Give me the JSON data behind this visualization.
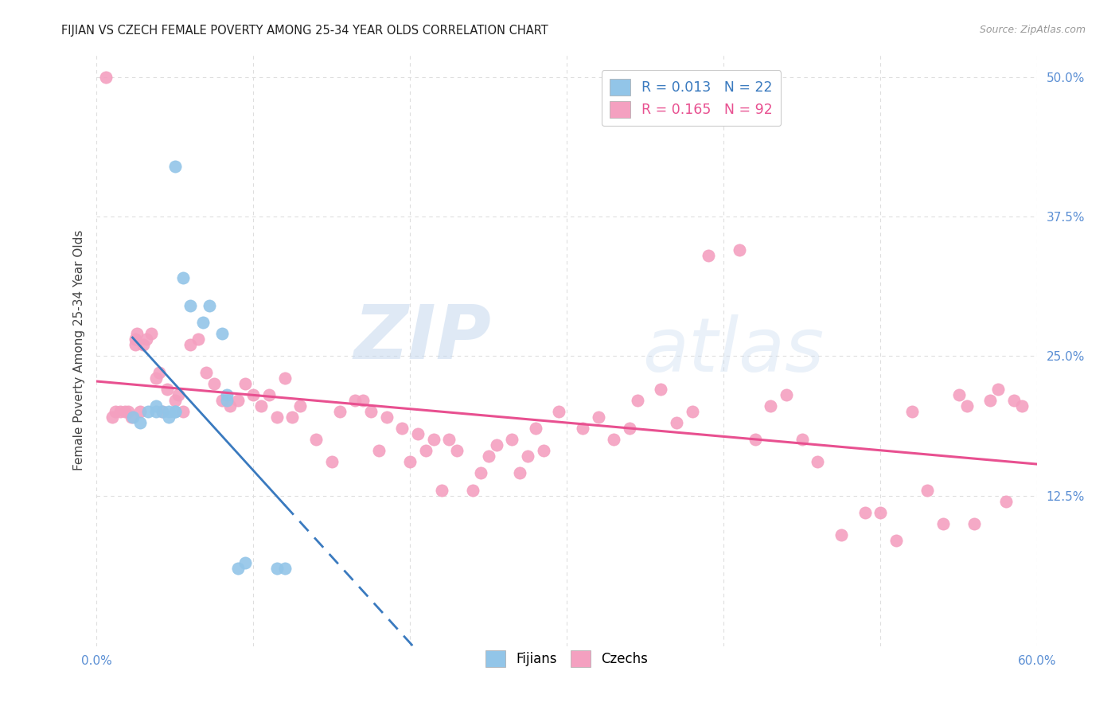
{
  "title": "FIJIAN VS CZECH FEMALE POVERTY AMONG 25-34 YEAR OLDS CORRELATION CHART",
  "source": "Source: ZipAtlas.com",
  "ylabel": "Female Poverty Among 25-34 Year Olds",
  "xlim": [
    0.0,
    0.6
  ],
  "ylim": [
    -0.01,
    0.52
  ],
  "xticks": [
    0.0,
    0.1,
    0.2,
    0.3,
    0.4,
    0.5,
    0.6
  ],
  "xticklabels": [
    "0.0%",
    "",
    "",
    "",
    "",
    "",
    "60.0%"
  ],
  "yticks": [
    0.0,
    0.125,
    0.25,
    0.375,
    0.5
  ],
  "yticklabels": [
    "",
    "12.5%",
    "25.0%",
    "37.5%",
    "50.0%"
  ],
  "fijian_color": "#92c5e8",
  "czech_color": "#f4a0c0",
  "fijian_line_color": "#3a7abf",
  "czech_line_color": "#e85090",
  "legend_fijian_R": "0.013",
  "legend_fijian_N": "22",
  "legend_czech_R": "0.165",
  "legend_czech_N": "92",
  "watermark_zip": "ZIP",
  "watermark_atlas": "atlas",
  "background_color": "#ffffff",
  "grid_color": "#dedede",
  "fijian_x": [
    0.023,
    0.028,
    0.033,
    0.038,
    0.038,
    0.042,
    0.046,
    0.046,
    0.05,
    0.05,
    0.05,
    0.055,
    0.06,
    0.068,
    0.072,
    0.08,
    0.083,
    0.083,
    0.09,
    0.095,
    0.115,
    0.12
  ],
  "fijian_y": [
    0.195,
    0.19,
    0.2,
    0.205,
    0.2,
    0.2,
    0.2,
    0.195,
    0.2,
    0.2,
    0.42,
    0.32,
    0.295,
    0.28,
    0.295,
    0.27,
    0.215,
    0.21,
    0.06,
    0.065,
    0.06,
    0.06
  ],
  "czech_x": [
    0.006,
    0.01,
    0.012,
    0.015,
    0.018,
    0.02,
    0.022,
    0.025,
    0.025,
    0.026,
    0.028,
    0.03,
    0.032,
    0.035,
    0.038,
    0.04,
    0.042,
    0.045,
    0.05,
    0.052,
    0.055,
    0.06,
    0.065,
    0.07,
    0.075,
    0.08,
    0.085,
    0.09,
    0.095,
    0.1,
    0.105,
    0.11,
    0.115,
    0.12,
    0.125,
    0.13,
    0.14,
    0.15,
    0.155,
    0.165,
    0.17,
    0.175,
    0.18,
    0.185,
    0.195,
    0.2,
    0.205,
    0.21,
    0.215,
    0.22,
    0.225,
    0.23,
    0.24,
    0.245,
    0.25,
    0.255,
    0.265,
    0.27,
    0.275,
    0.28,
    0.285,
    0.295,
    0.31,
    0.32,
    0.33,
    0.34,
    0.345,
    0.36,
    0.37,
    0.38,
    0.39,
    0.41,
    0.42,
    0.43,
    0.44,
    0.45,
    0.46,
    0.475,
    0.49,
    0.5,
    0.51,
    0.52,
    0.53,
    0.54,
    0.55,
    0.555,
    0.56,
    0.57,
    0.575,
    0.58,
    0.585,
    0.59
  ],
  "czech_y": [
    0.5,
    0.195,
    0.2,
    0.2,
    0.2,
    0.2,
    0.195,
    0.26,
    0.265,
    0.27,
    0.2,
    0.26,
    0.265,
    0.27,
    0.23,
    0.235,
    0.2,
    0.22,
    0.21,
    0.215,
    0.2,
    0.26,
    0.265,
    0.235,
    0.225,
    0.21,
    0.205,
    0.21,
    0.225,
    0.215,
    0.205,
    0.215,
    0.195,
    0.23,
    0.195,
    0.205,
    0.175,
    0.155,
    0.2,
    0.21,
    0.21,
    0.2,
    0.165,
    0.195,
    0.185,
    0.155,
    0.18,
    0.165,
    0.175,
    0.13,
    0.175,
    0.165,
    0.13,
    0.145,
    0.16,
    0.17,
    0.175,
    0.145,
    0.16,
    0.185,
    0.165,
    0.2,
    0.185,
    0.195,
    0.175,
    0.185,
    0.21,
    0.22,
    0.19,
    0.2,
    0.34,
    0.345,
    0.175,
    0.205,
    0.215,
    0.175,
    0.155,
    0.09,
    0.11,
    0.11,
    0.085,
    0.2,
    0.13,
    0.1,
    0.215,
    0.205,
    0.1,
    0.21,
    0.22,
    0.12,
    0.21,
    0.205
  ]
}
